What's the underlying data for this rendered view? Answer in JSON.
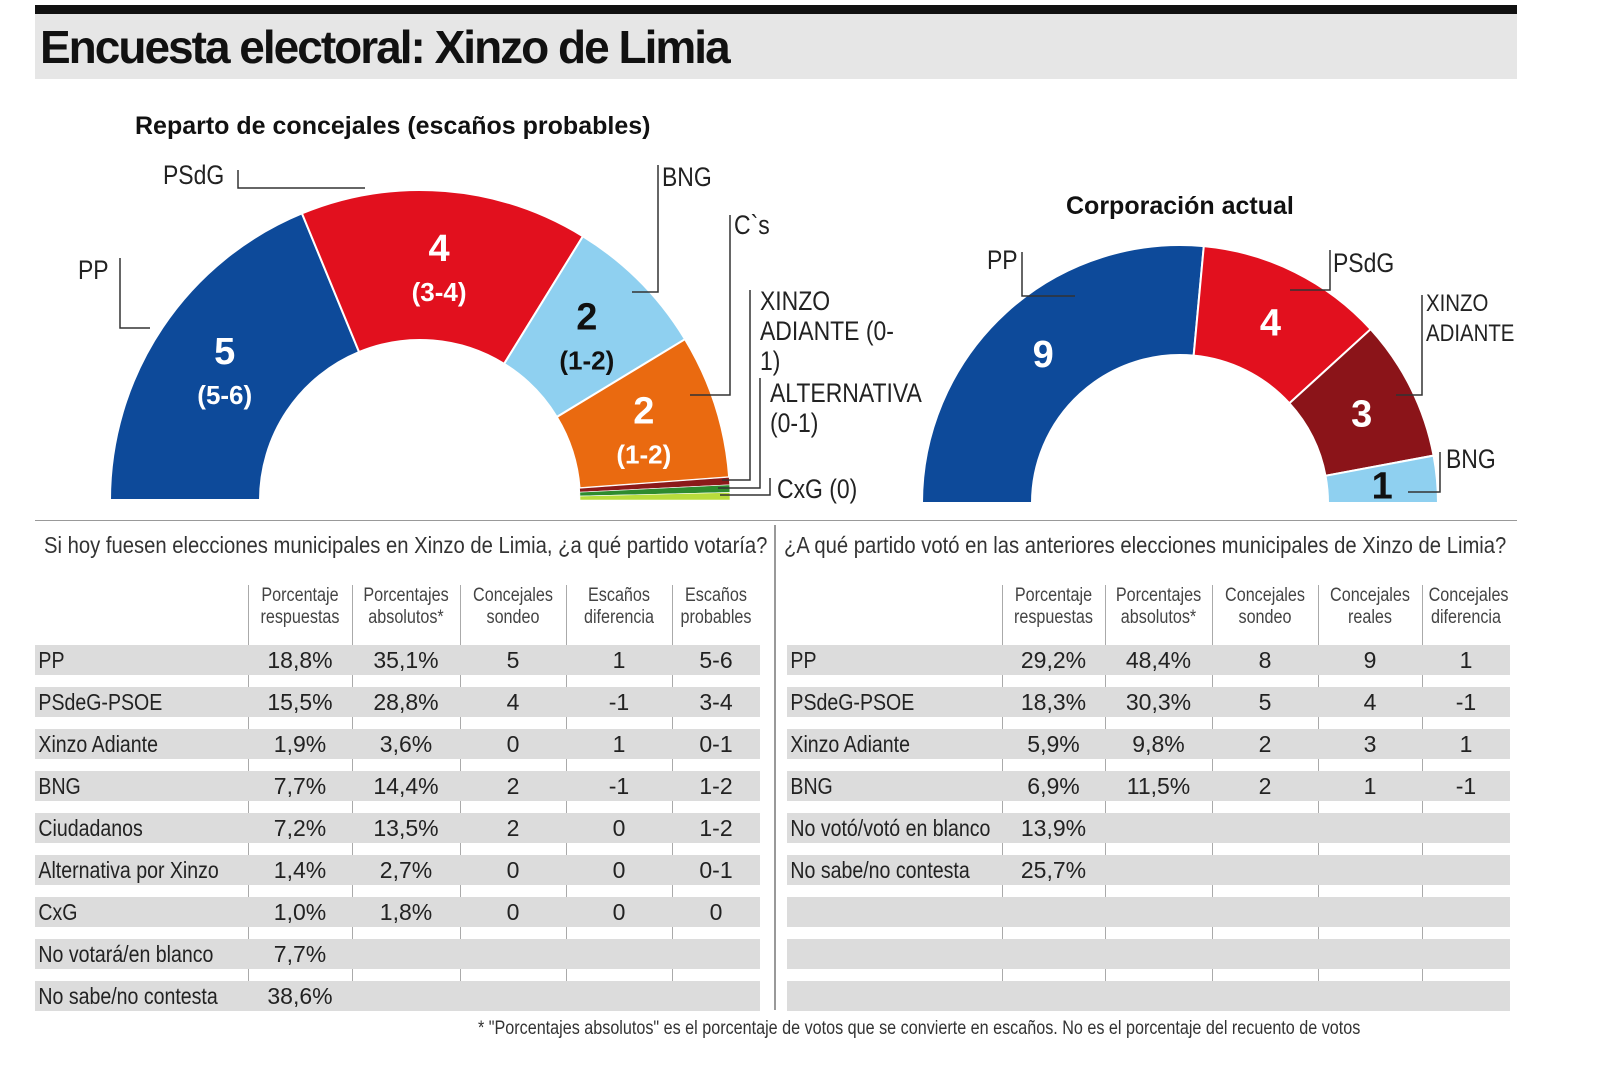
{
  "title": "Encuesta electoral: Xinzo de Limia",
  "chart_data": [
    {
      "type": "pie",
      "subtype": "half-donut",
      "title": "Reparto de concejales (escaños probables)",
      "slices": [
        {
          "label": "PP",
          "value": 5,
          "range": "(5-6)",
          "color": "#0d4a9a"
        },
        {
          "label": "PSdG",
          "value": 4,
          "range": "(3-4)",
          "color": "#e2101e"
        },
        {
          "label": "BNG",
          "value": 2,
          "range": "(1-2)",
          "color": "#8fd0f0"
        },
        {
          "label": "C`s",
          "value": 2,
          "range": "(1-2)",
          "color": "#ea6a10"
        },
        {
          "label": "XINZO ADIANTE (0-1)",
          "value": 0,
          "color": "#8b1a1a"
        },
        {
          "label": "ALTERNATIVA (0-1)",
          "value": 0,
          "color": "#2e8b2e"
        },
        {
          "label": "CxG (0)",
          "value": 0,
          "color": "#b8dc3c"
        }
      ]
    },
    {
      "type": "pie",
      "subtype": "half-donut",
      "title": "Corporación actual",
      "slices": [
        {
          "label": "PP",
          "value": 9,
          "color": "#0d4a9a"
        },
        {
          "label": "PSdG",
          "value": 4,
          "color": "#e2101e"
        },
        {
          "label": "XINZO ADIANTE",
          "value": 3,
          "color": "#8b1419"
        },
        {
          "label": "BNG",
          "value": 1,
          "color": "#8fd0f0"
        }
      ]
    },
    {
      "type": "table",
      "question": "Si hoy fuesen elecciones municipales en Xinzo de Limia, ¿a qué partido votaría?",
      "headers": [
        "Porcentaje respuestas",
        "Porcentajes absolutos*",
        "Concejales sondeo",
        "Escaños diferencia",
        "Escaños probables"
      ],
      "rows": [
        [
          "PP",
          "18,8%",
          "35,1%",
          "5",
          "1",
          "5-6"
        ],
        [
          "PSdeG-PSOE",
          "15,5%",
          "28,8%",
          "4",
          "-1",
          "3-4"
        ],
        [
          "Xinzo Adiante",
          "1,9%",
          "3,6%",
          "0",
          "1",
          "0-1"
        ],
        [
          "BNG",
          "7,7%",
          "14,4%",
          "2",
          "-1",
          "1-2"
        ],
        [
          "Ciudadanos",
          "7,2%",
          "13,5%",
          "2",
          "0",
          "1-2"
        ],
        [
          "Alternativa por Xinzo",
          "1,4%",
          "2,7%",
          "0",
          "0",
          "0-1"
        ],
        [
          "CxG",
          "1,0%",
          "1,8%",
          "0",
          "0",
          "0"
        ],
        [
          "No votará/en blanco",
          "7,7%",
          "",
          "",
          "",
          ""
        ],
        [
          "No sabe/no contesta",
          "38,6%",
          "",
          "",
          "",
          ""
        ]
      ]
    },
    {
      "type": "table",
      "question": "¿A qué partido votó en las anteriores elecciones municipales de Xinzo de Limia?",
      "headers": [
        "Porcentaje respuestas",
        "Porcentajes absolutos*",
        "Concejales sondeo",
        "Concejales reales",
        "Concejales diferencia"
      ],
      "rows": [
        [
          "PP",
          "29,2%",
          "48,4%",
          "8",
          "9",
          "1"
        ],
        [
          "PSdeG-PSOE",
          "18,3%",
          "30,3%",
          "5",
          "4",
          "-1"
        ],
        [
          "Xinzo Adiante",
          "5,9%",
          "9,8%",
          "2",
          "3",
          "1"
        ],
        [
          "BNG",
          "6,9%",
          "11,5%",
          "2",
          "1",
          "-1"
        ],
        [
          "No votó/votó en blanco",
          "13,9%",
          "",
          "",
          "",
          ""
        ],
        [
          "No sabe/no contesta",
          "25,7%",
          "",
          "",
          "",
          ""
        ],
        [
          "",
          "",
          "",
          "",
          "",
          ""
        ],
        [
          "",
          "",
          "",
          "",
          "",
          ""
        ],
        [
          "",
          "",
          "",
          "",
          "",
          ""
        ]
      ]
    }
  ],
  "footnote": "* \"Porcentajes absolutos\" es el porcentaje de votos que se convierte en escaños. No es el porcentaje del recuento de votos"
}
